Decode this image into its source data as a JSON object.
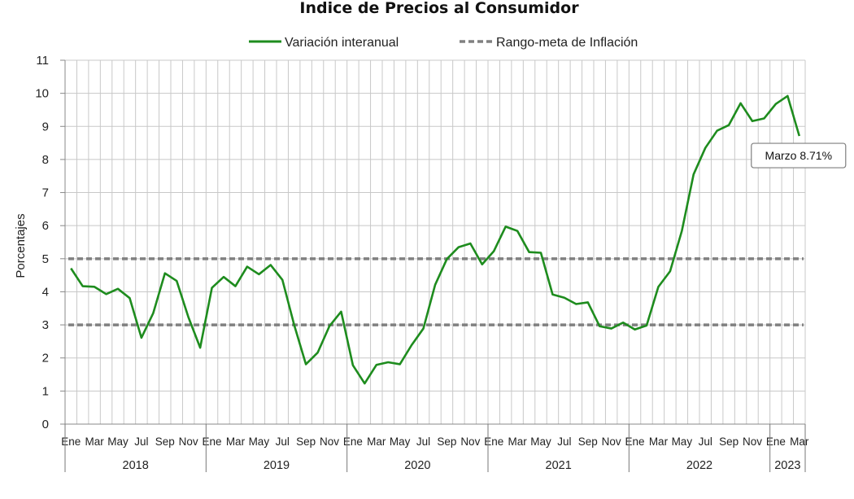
{
  "chart_data": {
    "type": "line",
    "title": "Indice de Precios al Consumidor",
    "ylabel": "Porcentajes",
    "ylim": [
      0,
      11
    ],
    "yticks": [
      0,
      1,
      2,
      3,
      4,
      5,
      6,
      7,
      8,
      9,
      10,
      11
    ],
    "grid": true,
    "legend_position": "top",
    "x_month_labels": [
      "Ene",
      "Mar",
      "May",
      "Jul",
      "Sep",
      "Nov",
      "Ene",
      "Mar",
      "May",
      "Jul",
      "Sep",
      "Nov",
      "Ene",
      "Mar",
      "May",
      "Jul",
      "Sep",
      "Nov",
      "Ene",
      "Mar",
      "May",
      "Jul",
      "Sep",
      "Nov",
      "Ene",
      "Mar",
      "May",
      "Jul",
      "Sep",
      "Nov",
      "Ene",
      "Mar"
    ],
    "x_month_index": [
      0,
      2,
      4,
      6,
      8,
      10,
      12,
      14,
      16,
      18,
      20,
      22,
      24,
      26,
      28,
      30,
      32,
      34,
      36,
      38,
      40,
      42,
      44,
      46,
      48,
      50,
      52,
      54,
      56,
      58,
      60,
      62
    ],
    "years": [
      {
        "label": "2018",
        "start": 0,
        "count": 12
      },
      {
        "label": "2019",
        "start": 12,
        "count": 12
      },
      {
        "label": "2020",
        "start": 24,
        "count": 12
      },
      {
        "label": "2021",
        "start": 36,
        "count": 12
      },
      {
        "label": "2022",
        "start": 48,
        "count": 12
      },
      {
        "label": "2023",
        "start": 60,
        "count": 3
      }
    ],
    "series": [
      {
        "name": "Variación interanual",
        "color": "#1e8c1e",
        "style": "solid",
        "values": [
          4.71,
          4.17,
          4.15,
          3.93,
          4.09,
          3.81,
          2.61,
          3.35,
          4.56,
          4.33,
          3.23,
          2.31,
          4.12,
          4.45,
          4.17,
          4.76,
          4.53,
          4.81,
          4.36,
          3.0,
          1.81,
          2.16,
          2.96,
          3.4,
          1.78,
          1.23,
          1.79,
          1.87,
          1.81,
          2.39,
          2.89,
          4.21,
          4.99,
          5.35,
          5.46,
          4.83,
          5.23,
          5.97,
          5.84,
          5.2,
          5.18,
          3.92,
          3.82,
          3.63,
          3.68,
          2.96,
          2.89,
          3.07,
          2.86,
          2.98,
          4.15,
          4.62,
          5.84,
          7.55,
          8.35,
          8.87,
          9.04,
          9.7,
          9.16,
          9.24,
          9.68,
          9.92,
          8.71
        ]
      },
      {
        "name": "Rango-meta de Inflación",
        "color": "#808080",
        "style": "dashed",
        "bands": [
          5,
          3
        ]
      }
    ],
    "annotation": {
      "text": "Marzo 8.71%",
      "index": 62,
      "value": 8.71
    }
  }
}
